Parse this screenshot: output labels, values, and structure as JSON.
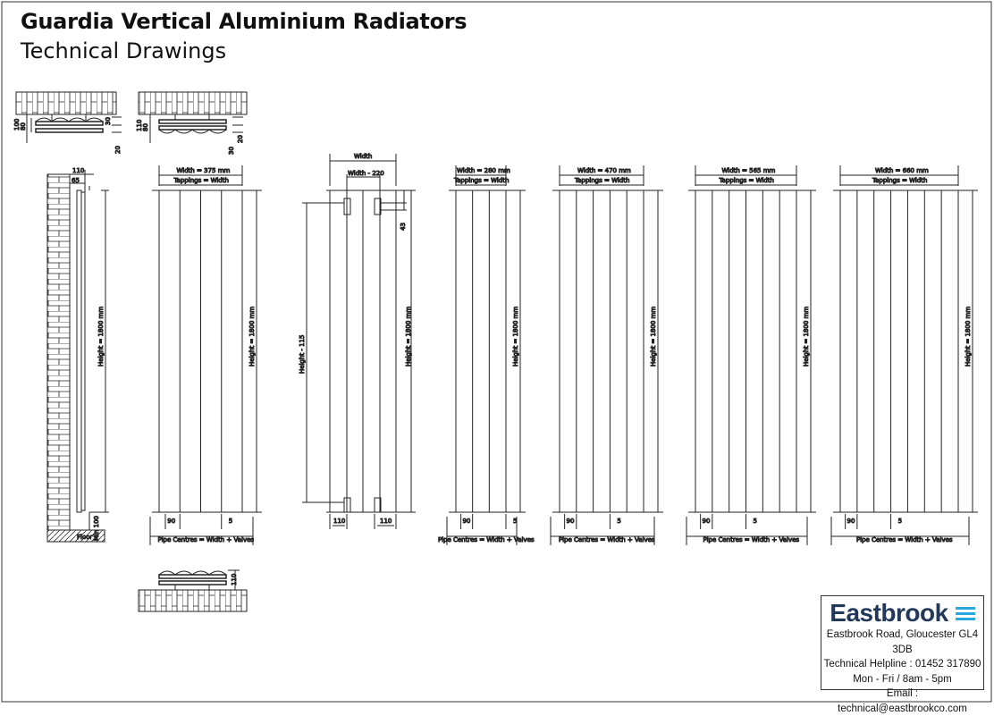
{
  "title": "Guardia Vertical Aluminium Radiators",
  "subtitle": "Technical Drawings",
  "plan_view_1": {
    "d1": "100",
    "d2": "80",
    "d3": "30",
    "d4": "20"
  },
  "plan_view_2": {
    "d1": "110",
    "d2": "80",
    "d3": "20",
    "d4": "30"
  },
  "plan_view_3": {
    "d1": "110"
  },
  "side_view": {
    "depth": "110",
    "offset": "65",
    "height": "Height = 1800 mm",
    "min_floor": "Min 100",
    "floor": "Floor"
  },
  "generic_view": {
    "width": "Width",
    "tapping_spacing": "Width - 220",
    "tap_offset": "43",
    "height_tap": "Height - 115",
    "height": "Height = 1800 mm",
    "left_offset": "110",
    "right_offset": "110"
  },
  "radiators": [
    {
      "width": "Width = 375 mm",
      "tappings": "Tappings = Width",
      "height": "Height = 1800 mm",
      "column": "90",
      "gap": "5",
      "pipe": "Pipe Centres = Width + Valves",
      "columns": 4
    },
    {
      "width": "Width = 280 mm",
      "tappings": "Tappings = Width",
      "height": "Height = 1800 mm",
      "column": "90",
      "gap": "5",
      "pipe": "Pipe Centres = Width + Valves",
      "columns": 3
    },
    {
      "width": "Width = 470 mm",
      "tappings": "Tappings = Width",
      "height": "Height = 1800 mm",
      "column": "90",
      "gap": "5",
      "pipe": "Pipe Centres = Width + Valves",
      "columns": 5
    },
    {
      "width": "Width = 565 mm",
      "tappings": "Tappings = Width",
      "height": "Height = 1800 mm",
      "column": "90",
      "gap": "5",
      "pipe": "Pipe Centres = Width + Valves",
      "columns": 6
    },
    {
      "width": "Width = 660 mm",
      "tappings": "Tappings = Width",
      "height": "Height = 1800 mm",
      "column": "90",
      "gap": "5",
      "pipe": "Pipe Centres = Width + Valves",
      "columns": 7
    }
  ],
  "company": {
    "logo": "Eastbrook",
    "address": "Eastbrook Road, Gloucester GL4 3DB",
    "helpline": "Technical Helpline : 01452 317890",
    "hours": "Mon - Fri / 8am - 5pm",
    "email": "Email : technical@eastbrookco.com",
    "brand_color": "#23395b",
    "accent_color": "#2aa8e0"
  }
}
